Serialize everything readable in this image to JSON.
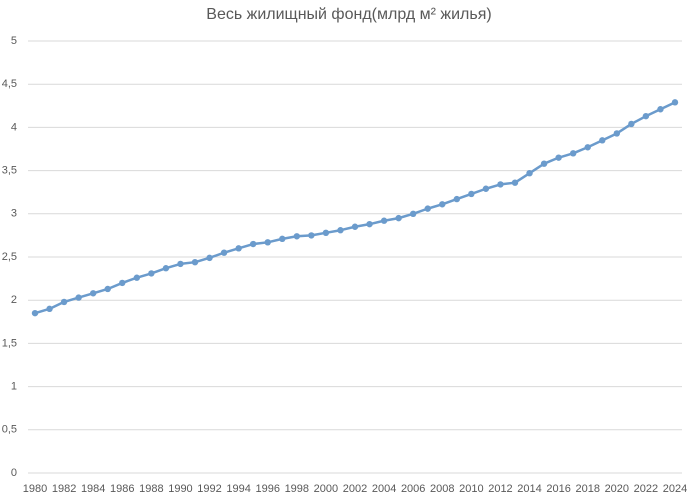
{
  "chart_data": {
    "type": "line",
    "title": "Весь жилищный фонд(млрд м² жилья)",
    "x": [
      1980,
      1981,
      1982,
      1983,
      1984,
      1985,
      1986,
      1987,
      1988,
      1989,
      1990,
      1991,
      1992,
      1993,
      1994,
      1995,
      1996,
      1997,
      1998,
      1999,
      2000,
      2001,
      2002,
      2003,
      2004,
      2005,
      2006,
      2007,
      2008,
      2009,
      2010,
      2011,
      2012,
      2013,
      2014,
      2015,
      2016,
      2017,
      2018,
      2019,
      2020,
      2021,
      2022,
      2023,
      2024
    ],
    "series": [
      {
        "name": "Весь жилищный фонд",
        "color": "#6b9bcc",
        "values": [
          1.85,
          1.9,
          1.98,
          2.03,
          2.08,
          2.13,
          2.2,
          2.26,
          2.31,
          2.37,
          2.42,
          2.44,
          2.49,
          2.55,
          2.6,
          2.65,
          2.67,
          2.71,
          2.74,
          2.75,
          2.78,
          2.81,
          2.85,
          2.88,
          2.92,
          2.95,
          3.0,
          3.06,
          3.11,
          3.17,
          3.23,
          3.29,
          3.34,
          3.36,
          3.47,
          3.58,
          3.65,
          3.7,
          3.77,
          3.85,
          3.93,
          4.04,
          4.13,
          4.21,
          4.29
        ]
      }
    ],
    "xlim": [
      1980,
      2024
    ],
    "xticks": [
      1980,
      1982,
      1984,
      1986,
      1988,
      1990,
      1992,
      1994,
      1996,
      1998,
      2000,
      2002,
      2004,
      2006,
      2008,
      2010,
      2012,
      2014,
      2016,
      2018,
      2020,
      2022,
      2024
    ],
    "ylim": [
      0,
      5
    ],
    "yticks": [
      0,
      {
        "value": 0.5,
        "label": "0,5"
      },
      1,
      {
        "value": 1.5,
        "label": "1,5"
      },
      2,
      {
        "value": 2.5,
        "label": "2,5"
      },
      3,
      {
        "value": 3.5,
        "label": "3,5"
      },
      4,
      {
        "value": 4.5,
        "label": "4,5"
      },
      5
    ],
    "grid": true
  }
}
